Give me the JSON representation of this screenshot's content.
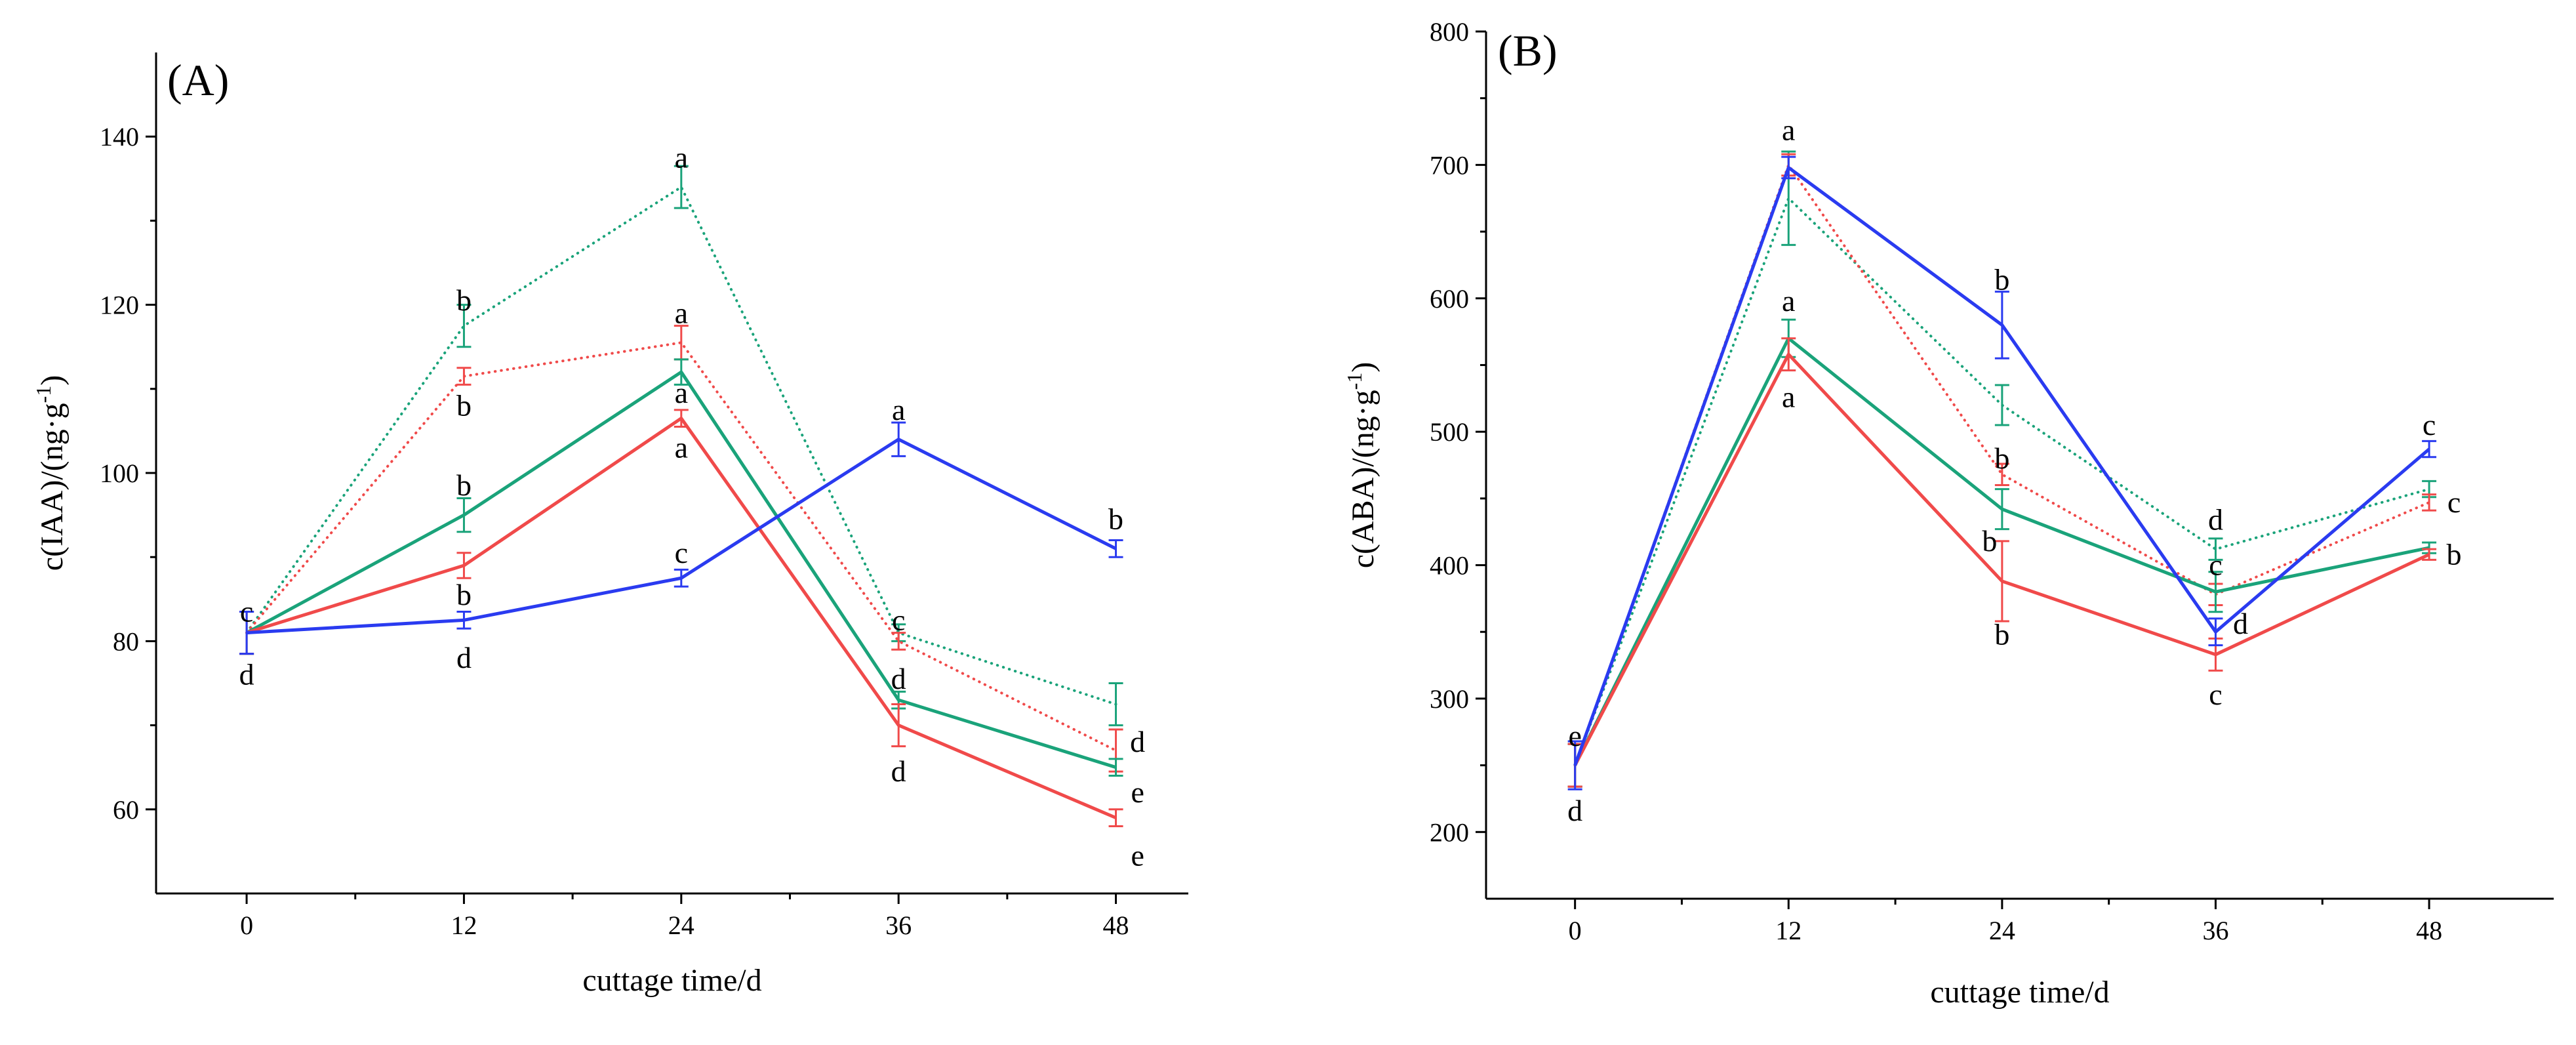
{
  "chart_data": [
    {
      "type": "line",
      "panel_label": "(A)",
      "xlabel": "cuttage time/d",
      "ylabel": "c(IAA)/(ng·g-1)",
      "ylabel_main": "c(IAA)/(ng·g",
      "ylabel_sup": "-1",
      "ylabel_end": ")",
      "x": [
        0,
        12,
        24,
        36,
        48
      ],
      "x_tick_labels": [
        "0",
        "12",
        "24",
        "36",
        "48"
      ],
      "y_ticks": [
        60,
        80,
        100,
        120,
        140
      ],
      "y_tick_labels": [
        "60",
        "80",
        "100",
        "120",
        "140"
      ],
      "xlim": [
        -5,
        52
      ],
      "ylim": [
        50,
        150
      ],
      "series": [
        {
          "color": "#1aa37a",
          "dash": "dotted",
          "values": [
            81,
            117.5,
            134,
            81,
            72.5
          ],
          "errors": [
            2.5,
            2.5,
            2.5,
            1,
            2.5
          ]
        },
        {
          "color": "#f04a4a",
          "dash": "dotted",
          "values": [
            81,
            111.5,
            115.5,
            80,
            67
          ],
          "errors": [
            2.5,
            1,
            2,
            1,
            2.5
          ]
        },
        {
          "color": "#1aa37a",
          "dash": "solid",
          "values": [
            81,
            95,
            112,
            73,
            65
          ],
          "errors": [
            2.5,
            2,
            1.5,
            1,
            1
          ]
        },
        {
          "color": "#f04a4a",
          "dash": "solid",
          "values": [
            81,
            89,
            106.5,
            70,
            59
          ],
          "errors": [
            2.5,
            1.5,
            1,
            2.5,
            1
          ]
        },
        {
          "color": "#2a3bf0",
          "dash": "solid",
          "values": [
            81,
            82.5,
            87.5,
            104,
            91
          ],
          "errors": [
            2.5,
            1,
            1,
            2,
            1
          ]
        }
      ],
      "annotations": [
        {
          "x": 0,
          "y": 83.5,
          "text": "c"
        },
        {
          "x": 0,
          "y": 76,
          "text": "d"
        },
        {
          "x": 12,
          "y": 120.5,
          "text": "b"
        },
        {
          "x": 12,
          "y": 108,
          "text": "b"
        },
        {
          "x": 12,
          "y": 98.5,
          "text": "b"
        },
        {
          "x": 12,
          "y": 85.5,
          "text": "b"
        },
        {
          "x": 12,
          "y": 78,
          "text": "d"
        },
        {
          "x": 24,
          "y": 137.5,
          "text": "a"
        },
        {
          "x": 24,
          "y": 119,
          "text": "a"
        },
        {
          "x": 24,
          "y": 109.5,
          "text": "a"
        },
        {
          "x": 24,
          "y": 103,
          "text": "a"
        },
        {
          "x": 24,
          "y": 90.5,
          "text": "c"
        },
        {
          "x": 36,
          "y": 107.5,
          "text": "a"
        },
        {
          "x": 36,
          "y": 82.5,
          "text": "c"
        },
        {
          "x": 36,
          "y": 75.5,
          "text": "d"
        },
        {
          "x": 36,
          "y": 64.5,
          "text": "d"
        },
        {
          "x": 48,
          "y": 94.5,
          "text": "b"
        },
        {
          "x": 49.2,
          "y": 68,
          "text": "d"
        },
        {
          "x": 49.2,
          "y": 62,
          "text": "e"
        },
        {
          "x": 49.2,
          "y": 54.5,
          "text": "e"
        }
      ]
    },
    {
      "type": "line",
      "panel_label": "(B)",
      "xlabel": "cuttage time/d",
      "ylabel": "c(ABA)/(ng·g-1)",
      "ylabel_main": "c(ABA)/(ng·g",
      "ylabel_sup": "-1",
      "ylabel_end": ")",
      "x": [
        0,
        12,
        24,
        36,
        48
      ],
      "x_tick_labels": [
        "0",
        "12",
        "24",
        "36",
        "48"
      ],
      "y_ticks": [
        200,
        300,
        400,
        500,
        600,
        700,
        800
      ],
      "y_tick_labels": [
        "200",
        "300",
        "400",
        "500",
        "600",
        "700",
        "800"
      ],
      "xlim": [
        -5,
        55
      ],
      "ylim": [
        150,
        800
      ],
      "series": [
        {
          "color": "#1aa37a",
          "dash": "dotted",
          "values": [
            250,
            675,
            520,
            412,
            457
          ],
          "errors": [
            16,
            35,
            15,
            8,
            6
          ]
        },
        {
          "color": "#f04a4a",
          "dash": "dotted",
          "values": [
            250,
            700,
            468,
            378,
            447
          ],
          "errors": [
            16,
            8,
            8,
            8,
            6
          ]
        },
        {
          "color": "#1aa37a",
          "dash": "solid",
          "values": [
            250,
            570,
            442,
            380,
            413
          ],
          "errors": [
            16,
            14,
            15,
            15,
            4
          ]
        },
        {
          "color": "#f04a4a",
          "dash": "solid",
          "values": [
            250,
            558,
            388,
            333,
            408
          ],
          "errors": [
            16,
            12,
            30,
            12,
            4
          ]
        },
        {
          "color": "#2a3bf0",
          "dash": "solid",
          "values": [
            250,
            698,
            580,
            350,
            487
          ],
          "errors": [
            18,
            8,
            25,
            10,
            6
          ]
        }
      ],
      "annotations": [
        {
          "x": 0,
          "y": 272,
          "text": "e"
        },
        {
          "x": 0,
          "y": 216,
          "text": "d"
        },
        {
          "x": 12,
          "y": 726,
          "text": "a"
        },
        {
          "x": 12,
          "y": 598,
          "text": "a"
        },
        {
          "x": 12,
          "y": 526,
          "text": "a"
        },
        {
          "x": 24,
          "y": 614,
          "text": "b"
        },
        {
          "x": 24,
          "y": 480,
          "text": "b"
        },
        {
          "x": 23.3,
          "y": 418,
          "text": "b"
        },
        {
          "x": 24,
          "y": 348,
          "text": "b"
        },
        {
          "x": 36,
          "y": 434,
          "text": "d"
        },
        {
          "x": 36,
          "y": 400,
          "text": "c"
        },
        {
          "x": 37.4,
          "y": 356,
          "text": "d"
        },
        {
          "x": 36,
          "y": 303,
          "text": "c"
        },
        {
          "x": 48,
          "y": 505,
          "text": "c"
        },
        {
          "x": 49.4,
          "y": 447,
          "text": "c"
        },
        {
          "x": 49.4,
          "y": 408,
          "text": "b"
        }
      ]
    }
  ]
}
